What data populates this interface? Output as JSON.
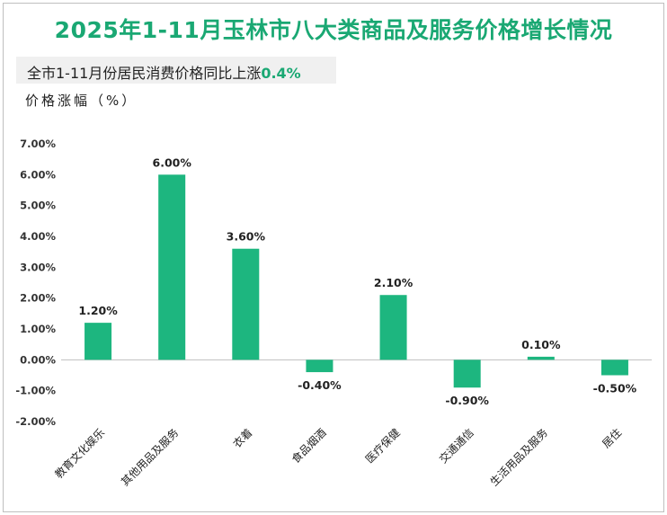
{
  "title": "2025年1-11月玉林市八大类商品及服务价格增长情况",
  "subtitle": {
    "prefix": "全市1-11月份居民消费价格同比上涨",
    "highlight": "0.4%"
  },
  "colors": {
    "accent": "#1aa873",
    "bar": "#1db67f",
    "subtitle_bg": "#f0f0f0"
  },
  "chart_data": {
    "type": "bar",
    "ylabel": "价格涨幅（%）",
    "categories": [
      "教育文化娱乐",
      "其他用品及服务",
      "衣着",
      "食品烟酒",
      "医疗保健",
      "交通通信",
      "生活用品及服务",
      "居住"
    ],
    "values": [
      1.2,
      6.0,
      3.6,
      -0.4,
      2.1,
      -0.9,
      0.1,
      -0.5
    ],
    "data_labels": [
      "1.20%",
      "6.00%",
      "3.60%",
      "-0.40%",
      "2.10%",
      "-0.90%",
      "0.10%",
      "-0.50%"
    ],
    "ylim": [
      -2,
      7
    ],
    "yticks": [
      7,
      6,
      5,
      4,
      3,
      2,
      1,
      0,
      -1,
      -2
    ],
    "ytick_labels": [
      "7.00%",
      "6.00%",
      "5.00%",
      "4.00%",
      "3.00%",
      "2.00%",
      "1.00%",
      "0.00%",
      "-1.00%",
      "-2.00%"
    ],
    "grid": false,
    "legend": "none"
  }
}
